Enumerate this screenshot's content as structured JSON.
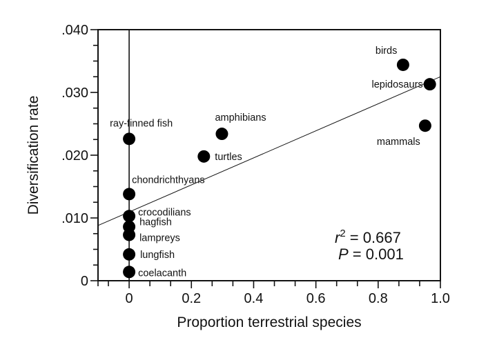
{
  "chart_data": {
    "type": "scatter",
    "xlabel": "Proportion terrestrial species",
    "ylabel": "Diversification rate",
    "xlim": [
      -0.1,
      1.0
    ],
    "ylim": [
      0,
      0.04
    ],
    "x_ticks": [
      0,
      0.2,
      0.4,
      0.6,
      0.8,
      1.0
    ],
    "x_tick_labels": [
      "0",
      "0.2",
      "0.4",
      "0.6",
      "0.8",
      "1.0"
    ],
    "y_ticks": [
      0,
      0.01,
      0.02,
      0.03,
      0.04
    ],
    "y_tick_labels": [
      "0",
      ".010",
      ".020",
      ".030",
      ".040"
    ],
    "grid": false,
    "points": [
      {
        "label": "birds",
        "x": 0.88,
        "y": 0.0344
      },
      {
        "label": "lepidosaurs",
        "x": 0.966,
        "y": 0.0313
      },
      {
        "label": "mammals",
        "x": 0.951,
        "y": 0.0247
      },
      {
        "label": "amphibians",
        "x": 0.298,
        "y": 0.0234
      },
      {
        "label": "turtles",
        "x": 0.24,
        "y": 0.0198
      },
      {
        "label": "ray-finned fish",
        "x": 0,
        "y": 0.0226
      },
      {
        "label": "chondrichthyans",
        "x": 0,
        "y": 0.0138
      },
      {
        "label": "crocodilians",
        "x": 0,
        "y": 0.0103
      },
      {
        "label": "hagfish",
        "x": 0,
        "y": 0.0086
      },
      {
        "label": "lampreys",
        "x": 0,
        "y": 0.0073
      },
      {
        "label": "lungfish",
        "x": 0,
        "y": 0.0042
      },
      {
        "label": "coelacanth",
        "x": 0,
        "y": 0.0014
      }
    ],
    "regression_line": {
      "x": [
        -0.1,
        1.0
      ],
      "y": [
        0.0088,
        0.0325
      ]
    },
    "annotations": {
      "r2_label": "r",
      "r2_exp": "2",
      "r2_value": " = 0.667",
      "p_label": "P",
      "p_value": " = 0.001"
    }
  }
}
